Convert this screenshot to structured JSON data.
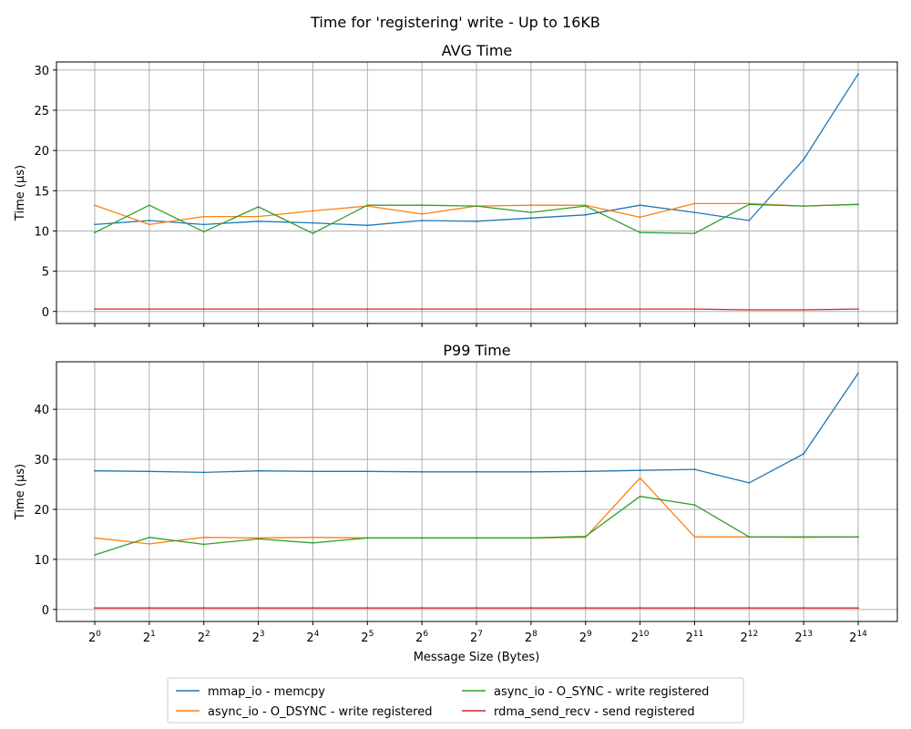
{
  "figure": {
    "suptitle": "Time for 'registering' write - Up to 16KB"
  },
  "chart_data": [
    {
      "type": "line",
      "title": "AVG Time",
      "xlabel": "",
      "ylabel": "Time (µs)",
      "x_scale": "log2",
      "x": [
        1,
        2,
        4,
        8,
        16,
        32,
        64,
        128,
        256,
        512,
        1024,
        2048,
        4096,
        8192,
        16384
      ],
      "x_tick_exponents": [
        "0",
        "1",
        "2",
        "3",
        "4",
        "5",
        "6",
        "7",
        "8",
        "9",
        "10",
        "11",
        "12",
        "13",
        "14"
      ],
      "ylim": [
        -1.5,
        31
      ],
      "yticks": [
        0,
        5,
        10,
        15,
        20,
        25,
        30
      ],
      "grid": true,
      "series": [
        {
          "name": "mmap_io - memcpy",
          "color": "#1f77b4",
          "values": [
            10.8,
            11.3,
            10.8,
            11.2,
            11.0,
            10.7,
            11.3,
            11.2,
            11.6,
            12.0,
            13.2,
            12.3,
            11.3,
            18.9,
            29.5
          ]
        },
        {
          "name": "async_io - O_DSYNC - write registered",
          "color": "#ff7f0e",
          "values": [
            13.2,
            10.8,
            11.8,
            11.8,
            12.5,
            13.1,
            12.1,
            13.1,
            13.2,
            13.2,
            11.7,
            13.4,
            13.4,
            13.1,
            13.3
          ]
        },
        {
          "name": "async_io - O_SYNC - write registered",
          "color": "#2ca02c",
          "values": [
            9.8,
            13.2,
            9.9,
            13.0,
            9.7,
            13.2,
            13.2,
            13.1,
            12.3,
            13.1,
            9.8,
            9.7,
            13.3,
            13.1,
            13.3
          ]
        },
        {
          "name": "rdma_send_recv - send registered",
          "color": "#d62728",
          "values": [
            0.3,
            0.3,
            0.3,
            0.3,
            0.3,
            0.3,
            0.3,
            0.3,
            0.3,
            0.3,
            0.3,
            0.3,
            0.2,
            0.2,
            0.3
          ]
        }
      ]
    },
    {
      "type": "line",
      "title": "P99 Time",
      "xlabel": "Message Size (Bytes)",
      "ylabel": "Time (µs)",
      "x_scale": "log2",
      "x": [
        1,
        2,
        4,
        8,
        16,
        32,
        64,
        128,
        256,
        512,
        1024,
        2048,
        4096,
        8192,
        16384
      ],
      "x_tick_exponents": [
        "0",
        "1",
        "2",
        "3",
        "4",
        "5",
        "6",
        "7",
        "8",
        "9",
        "10",
        "11",
        "12",
        "13",
        "14"
      ],
      "ylim": [
        -2.4,
        49.5
      ],
      "yticks": [
        0,
        10,
        20,
        30,
        40
      ],
      "grid": true,
      "series": [
        {
          "name": "mmap_io - memcpy",
          "color": "#1f77b4",
          "values": [
            27.7,
            27.6,
            27.4,
            27.7,
            27.6,
            27.6,
            27.5,
            27.5,
            27.5,
            27.6,
            27.8,
            28.0,
            25.3,
            31.1,
            47.2
          ]
        },
        {
          "name": "async_io - O_DSYNC - write registered",
          "color": "#ff7f0e",
          "values": [
            14.3,
            13.1,
            14.4,
            14.3,
            14.4,
            14.3,
            14.3,
            14.3,
            14.3,
            14.4,
            26.3,
            14.5,
            14.5,
            14.4,
            14.5
          ]
        },
        {
          "name": "async_io - O_SYNC - write registered",
          "color": "#2ca02c",
          "values": [
            10.9,
            14.4,
            13.0,
            14.1,
            13.3,
            14.3,
            14.3,
            14.3,
            14.3,
            14.6,
            22.6,
            20.9,
            14.5,
            14.5,
            14.5
          ]
        },
        {
          "name": "rdma_send_recv - send registered",
          "color": "#d62728",
          "values": [
            0.3,
            0.3,
            0.3,
            0.3,
            0.3,
            0.3,
            0.3,
            0.3,
            0.3,
            0.3,
            0.3,
            0.3,
            0.3,
            0.3,
            0.3
          ]
        }
      ]
    }
  ],
  "legend": {
    "placement": "bottom-center",
    "columns": 2,
    "entries": [
      {
        "label": "mmap_io - memcpy",
        "color": "#1f77b4"
      },
      {
        "label": "async_io - O_DSYNC - write registered",
        "color": "#ff7f0e"
      },
      {
        "label": "async_io - O_SYNC - write registered",
        "color": "#2ca02c"
      },
      {
        "label": "rdma_send_recv - send registered",
        "color": "#d62728"
      }
    ]
  }
}
